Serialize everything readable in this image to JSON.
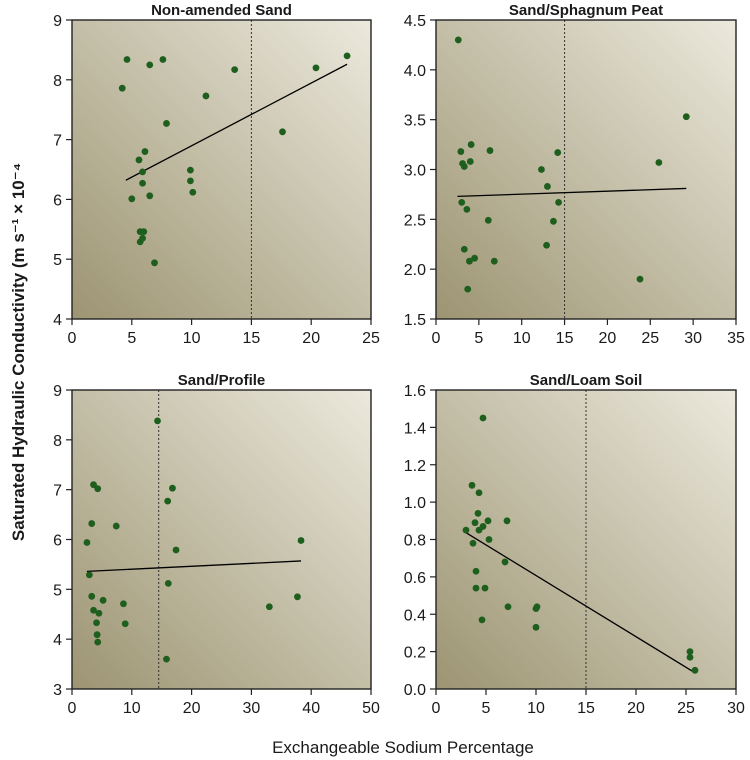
{
  "figure": {
    "ylabel": "Saturated Hydraulic Conductivity (m s⁻¹ × 10⁻⁴",
    "xlabel": "Exchangeable Sodium Percentage",
    "colors": {
      "marker": "#1e5f1e",
      "line": "#000000",
      "grad_light": "#ece9dd",
      "grad_dark": "#9c9472"
    }
  },
  "chart_data": [
    {
      "type": "scatter",
      "title": "Non-amended Sand",
      "xlim": [
        0,
        25
      ],
      "ylim": [
        4,
        9
      ],
      "xticks": [
        0,
        5,
        10,
        15,
        20,
        25
      ],
      "yticks": [
        4,
        5,
        6,
        7,
        8,
        9
      ],
      "ytick_labels": [
        "4",
        "5",
        "6",
        "7",
        "8",
        "9"
      ],
      "threshold_x": 15,
      "fit": {
        "x": [
          4.5,
          23
        ],
        "y": [
          6.32,
          8.26
        ]
      },
      "points": [
        [
          4.2,
          7.86
        ],
        [
          4.6,
          8.34
        ],
        [
          7.6,
          8.34
        ],
        [
          6.5,
          8.25
        ],
        [
          5.0,
          6.01
        ],
        [
          5.6,
          6.66
        ],
        [
          5.9,
          6.46
        ],
        [
          6.1,
          6.8
        ],
        [
          5.9,
          6.27
        ],
        [
          6.5,
          6.06
        ],
        [
          7.9,
          7.27
        ],
        [
          5.7,
          5.46
        ],
        [
          6.0,
          5.46
        ],
        [
          5.7,
          5.29
        ],
        [
          5.9,
          5.35
        ],
        [
          6.9,
          4.94
        ],
        [
          9.9,
          6.49
        ],
        [
          9.9,
          6.31
        ],
        [
          10.1,
          6.12
        ],
        [
          11.2,
          7.73
        ],
        [
          13.6,
          8.17
        ],
        [
          17.6,
          7.13
        ],
        [
          20.4,
          8.2
        ],
        [
          23.0,
          8.4
        ]
      ]
    },
    {
      "type": "scatter",
      "title": "Sand/Sphagnum Peat",
      "xlim": [
        0,
        35
      ],
      "ylim": [
        1.5,
        4.5
      ],
      "xticks": [
        0,
        5,
        10,
        15,
        20,
        25,
        30,
        35
      ],
      "yticks": [
        1.5,
        2.0,
        2.5,
        3.0,
        3.5,
        4.0,
        4.5
      ],
      "ytick_labels": [
        "1.5",
        "2.0",
        "2.5",
        "3.0",
        "3.5",
        "4.0",
        "4.5"
      ],
      "threshold_x": 15,
      "fit": {
        "x": [
          2.5,
          29.2
        ],
        "y": [
          2.73,
          2.81
        ]
      },
      "points": [
        [
          2.6,
          4.3
        ],
        [
          2.9,
          3.18
        ],
        [
          3.1,
          3.06
        ],
        [
          3.3,
          3.03
        ],
        [
          4.1,
          3.25
        ],
        [
          4.0,
          3.08
        ],
        [
          6.3,
          3.19
        ],
        [
          3.0,
          2.67
        ],
        [
          3.6,
          2.6
        ],
        [
          3.3,
          2.2
        ],
        [
          4.5,
          2.11
        ],
        [
          3.9,
          2.08
        ],
        [
          6.1,
          2.49
        ],
        [
          6.8,
          2.08
        ],
        [
          3.7,
          1.8
        ],
        [
          12.3,
          3.0
        ],
        [
          14.2,
          3.17
        ],
        [
          13.0,
          2.83
        ],
        [
          14.3,
          2.67
        ],
        [
          13.7,
          2.48
        ],
        [
          12.9,
          2.24
        ],
        [
          23.8,
          1.9
        ],
        [
          26.0,
          3.07
        ],
        [
          29.2,
          3.53
        ]
      ]
    },
    {
      "type": "scatter",
      "title": "Sand/Profile",
      "xlim": [
        0,
        50
      ],
      "ylim": [
        3,
        9
      ],
      "xticks": [
        0,
        10,
        20,
        30,
        40,
        50
      ],
      "yticks": [
        3,
        4,
        5,
        6,
        7,
        8,
        9
      ],
      "ytick_labels": [
        "3",
        "4",
        "5",
        "6",
        "7",
        "8",
        "9"
      ],
      "threshold_x": 14.5,
      "fit": {
        "x": [
          2.5,
          38.3
        ],
        "y": [
          5.36,
          5.57
        ]
      },
      "points": [
        [
          2.5,
          5.94
        ],
        [
          3.3,
          6.32
        ],
        [
          3.6,
          7.1
        ],
        [
          4.3,
          7.02
        ],
        [
          2.9,
          5.29
        ],
        [
          3.3,
          4.86
        ],
        [
          3.6,
          4.58
        ],
        [
          4.5,
          4.52
        ],
        [
          4.1,
          4.33
        ],
        [
          4.2,
          4.09
        ],
        [
          4.3,
          3.94
        ],
        [
          5.2,
          4.78
        ],
        [
          7.4,
          6.27
        ],
        [
          8.6,
          4.71
        ],
        [
          8.9,
          4.31
        ],
        [
          14.3,
          8.38
        ],
        [
          16.0,
          6.77
        ],
        [
          16.8,
          7.03
        ],
        [
          17.4,
          5.79
        ],
        [
          16.1,
          5.12
        ],
        [
          15.8,
          3.6
        ],
        [
          33.0,
          4.65
        ],
        [
          37.7,
          4.85
        ],
        [
          38.3,
          5.98
        ]
      ]
    },
    {
      "type": "scatter",
      "title": "Sand/Loam Soil",
      "xlim": [
        0,
        30
      ],
      "ylim": [
        0,
        1.6
      ],
      "xticks": [
        0,
        5,
        10,
        15,
        20,
        25,
        30
      ],
      "yticks": [
        0,
        0.2,
        0.4,
        0.6,
        0.8,
        1.0,
        1.2,
        1.4,
        1.6
      ],
      "ytick_labels": [
        "0.0",
        "0.2",
        "0.4",
        "0.6",
        "0.8",
        "1.0",
        "1.2",
        "1.4",
        "1.6"
      ],
      "threshold_x": 15,
      "fit": {
        "x": [
          2.9,
          25.8
        ],
        "y": [
          0.84,
          0.09
        ]
      },
      "points": [
        [
          4.7,
          1.45
        ],
        [
          3.6,
          1.09
        ],
        [
          4.3,
          1.05
        ],
        [
          4.2,
          0.94
        ],
        [
          3.9,
          0.89
        ],
        [
          4.7,
          0.87
        ],
        [
          5.2,
          0.9
        ],
        [
          3.0,
          0.85
        ],
        [
          4.3,
          0.85
        ],
        [
          3.7,
          0.78
        ],
        [
          5.3,
          0.8
        ],
        [
          4.0,
          0.63
        ],
        [
          4.0,
          0.54
        ],
        [
          4.9,
          0.54
        ],
        [
          4.6,
          0.37
        ],
        [
          7.1,
          0.9
        ],
        [
          6.9,
          0.68
        ],
        [
          7.2,
          0.44
        ],
        [
          10.0,
          0.43
        ],
        [
          10.1,
          0.44
        ],
        [
          10.0,
          0.33
        ],
        [
          25.4,
          0.2
        ],
        [
          25.4,
          0.17
        ],
        [
          25.9,
          0.1
        ]
      ]
    }
  ]
}
